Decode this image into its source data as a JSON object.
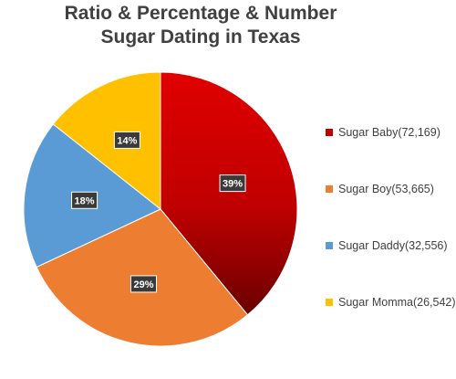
{
  "chart_data": {
    "type": "pie",
    "title_lines": [
      "Ratio & Percentage & Number",
      "Sugar Dating in Texas"
    ],
    "legend_position": "right",
    "slices": [
      {
        "label": "Sugar Baby(72,169)",
        "value": 72169,
        "percent_label": "39%",
        "color": "#c00000"
      },
      {
        "label": "Sugar Boy(53,665)",
        "value": 53665,
        "percent_label": "29%",
        "color": "#ed7d31"
      },
      {
        "label": "Sugar Daddy(32,556)",
        "value": 32556,
        "percent_label": "18%",
        "color": "#5b9bd5"
      },
      {
        "label": "Sugar Momma(26,542)",
        "value": 26542,
        "percent_label": "14%",
        "color": "#ffc000"
      }
    ]
  }
}
